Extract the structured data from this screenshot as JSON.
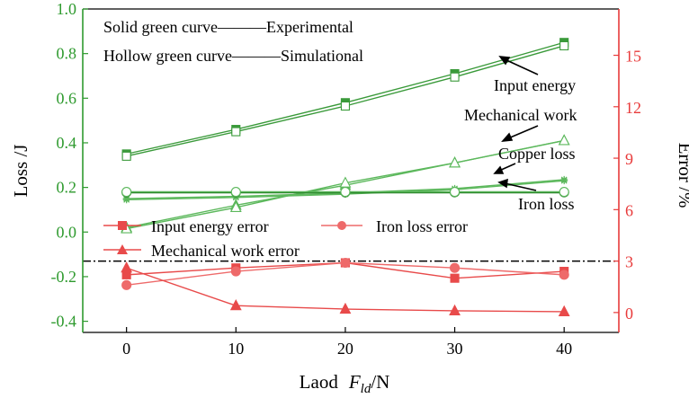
{
  "chart_data": {
    "type": "line",
    "x": [
      0,
      10,
      20,
      30,
      40
    ],
    "xlabel_main": "Laod",
    "xlabel_var": "F",
    "xlabel_sub": "ld",
    "xlabel_unit": "/N",
    "ylabel_left": "Loss /J",
    "ylabel_right": "Error /%",
    "xlim": [
      -4,
      45
    ],
    "ylim_left": [
      -0.45,
      1.0
    ],
    "ylim_right": [
      -1.16,
      17.7
    ],
    "xticks": [
      "0",
      "10",
      "20",
      "30",
      "40"
    ],
    "yticks_left": [
      "1.0",
      "0.8",
      "0.6",
      "0.4",
      "0.2",
      "0.0",
      "-0.2",
      "-0.4"
    ],
    "yticks_left_values": [
      1.0,
      0.8,
      0.6,
      0.4,
      0.2,
      0.0,
      -0.2,
      -0.4
    ],
    "yticks_right": [
      "15",
      "12",
      "9",
      "6",
      "3",
      "0"
    ],
    "yticks_right_values": [
      15,
      12,
      9,
      6,
      3,
      0
    ],
    "reference_line_error": 3.0,
    "notes": [
      {
        "id": "note-solid",
        "curve": "Solid green curve",
        "dash": "———",
        "meaning": "Experimental"
      },
      {
        "id": "note-hollow",
        "curve": "Hollow green curve",
        "dash": "———",
        "meaning": "Simulational"
      }
    ],
    "annotations": [
      "Input energy",
      "Mechanical work",
      "Copper loss",
      "Iron loss"
    ],
    "series": [
      {
        "name": "Input energy (experimental)",
        "axis": "left",
        "marker": "square",
        "filled": true,
        "color": "#3a9a3a",
        "values": [
          0.35,
          0.46,
          0.58,
          0.71,
          0.85
        ]
      },
      {
        "name": "Input energy (simulational)",
        "axis": "left",
        "marker": "square",
        "filled": false,
        "color": "#3a9a3a",
        "values": [
          0.34,
          0.45,
          0.565,
          0.695,
          0.835
        ]
      },
      {
        "name": "Mechanical work (experimental)",
        "axis": "left",
        "marker": "triangle",
        "filled": true,
        "color": "#5cb85c",
        "values": [
          0.02,
          0.12,
          0.21,
          0.31,
          0.41
        ]
      },
      {
        "name": "Mechanical work (simulational)",
        "axis": "left",
        "marker": "triangle",
        "filled": false,
        "color": "#5cb85c",
        "values": [
          0.015,
          0.11,
          0.22,
          0.31,
          0.41
        ]
      },
      {
        "name": "Copper loss (experimental)",
        "axis": "left",
        "marker": "star",
        "filled": true,
        "color": "#5cb85c",
        "values": [
          0.15,
          0.16,
          0.175,
          0.195,
          0.235
        ]
      },
      {
        "name": "Copper loss (simulational)",
        "axis": "left",
        "marker": "star",
        "filled": false,
        "color": "#5cb85c",
        "values": [
          0.145,
          0.155,
          0.17,
          0.19,
          0.23
        ]
      },
      {
        "name": "Iron loss (experimental)",
        "axis": "left",
        "marker": "circle",
        "filled": true,
        "color": "#1f7a1f",
        "values": [
          0.178,
          0.178,
          0.178,
          0.178,
          0.178
        ]
      },
      {
        "name": "Iron loss (simulational)",
        "axis": "left",
        "marker": "circle",
        "filled": false,
        "color": "#5cb85c",
        "values": [
          0.18,
          0.18,
          0.18,
          0.18,
          0.18
        ]
      },
      {
        "name": "Input energy error",
        "axis": "right",
        "marker": "square",
        "filled": true,
        "color": "#e84a4a",
        "values": [
          2.2,
          2.6,
          2.9,
          2.0,
          2.4
        ]
      },
      {
        "name": "Iron loss error",
        "axis": "right",
        "marker": "circle",
        "filled": true,
        "color": "#ee6a6a",
        "values": [
          1.6,
          2.4,
          2.9,
          2.6,
          2.2
        ]
      },
      {
        "name": "Mechanical work error",
        "axis": "right",
        "marker": "triangle",
        "filled": true,
        "color": "#e84a4a",
        "values": [
          2.6,
          0.4,
          0.2,
          0.1,
          0.05
        ]
      }
    ],
    "legend": [
      {
        "label": "Input energy error",
        "marker": "square",
        "color": "#e84a4a"
      },
      {
        "label": "Iron loss error",
        "marker": "circle",
        "color": "#ee6a6a"
      },
      {
        "label": "Mechanical work error",
        "marker": "triangle",
        "color": "#e84a4a"
      }
    ],
    "colors": {
      "left_axis": "#2e9a2e",
      "right_axis": "#e83a3a",
      "frame": "#000000"
    }
  }
}
